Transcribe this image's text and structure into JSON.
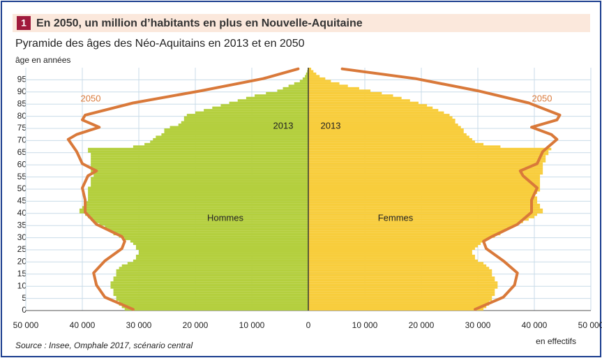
{
  "chart_data": {
    "type": "pyramid",
    "number": "1",
    "title": "En 2050, un million d’habitants en plus en Nouvelle-Aquitaine",
    "subtitle": "Pyramide des âges des Néo-Aquitains en 2013 et en 2050",
    "y_label": "âge en années",
    "x_label": "en effectifs",
    "source": "Source : Insee, Omphale 2017, scénario central",
    "bar_year": "2013",
    "ages": [
      0,
      1,
      2,
      3,
      4,
      5,
      6,
      7,
      8,
      9,
      10,
      11,
      12,
      13,
      14,
      15,
      16,
      17,
      18,
      19,
      20,
      21,
      22,
      23,
      24,
      25,
      26,
      27,
      28,
      29,
      30,
      31,
      32,
      33,
      34,
      35,
      36,
      37,
      38,
      39,
      40,
      41,
      42,
      43,
      44,
      45,
      46,
      47,
      48,
      49,
      50,
      51,
      52,
      53,
      54,
      55,
      56,
      57,
      58,
      59,
      60,
      61,
      62,
      63,
      64,
      65,
      66,
      67,
      68,
      69,
      70,
      71,
      72,
      73,
      74,
      75,
      76,
      77,
      78,
      79,
      80,
      81,
      82,
      83,
      84,
      85,
      86,
      87,
      88,
      89,
      90,
      91,
      92,
      93,
      94,
      95,
      96,
      97,
      98,
      99
    ],
    "series": [
      {
        "name": "Hommes",
        "side": "left",
        "color": "#b4cf3e",
        "values": [
          32500,
          33000,
          33500,
          33500,
          34000,
          34000,
          34500,
          34500,
          34500,
          35000,
          35000,
          35000,
          34500,
          34500,
          34000,
          34000,
          34000,
          33500,
          33000,
          32000,
          31000,
          30500,
          30500,
          30000,
          30000,
          30500,
          30500,
          31000,
          31500,
          32500,
          33500,
          34500,
          35000,
          35500,
          36000,
          37000,
          38000,
          38500,
          39000,
          39500,
          40500,
          40500,
          40000,
          39500,
          39500,
          39000,
          39000,
          39000,
          39000,
          39000,
          39000,
          38500,
          38500,
          38500,
          38500,
          38000,
          38500,
          38500,
          38500,
          38500,
          38500,
          38500,
          38500,
          38500,
          38500,
          39000,
          39000,
          31000,
          29000,
          28000,
          27500,
          27000,
          26000,
          25500,
          25500,
          24500,
          23000,
          22500,
          22000,
          22000,
          21500,
          20000,
          18500,
          17000,
          15500,
          14000,
          12500,
          11000,
          9500,
          7500,
          5500,
          4500,
          3500,
          2500,
          1500,
          1000,
          600,
          400,
          200,
          100
        ]
      },
      {
        "name": "Femmes",
        "side": "right",
        "color": "#f8cd3c",
        "values": [
          31000,
          31500,
          32000,
          32000,
          32500,
          32500,
          33000,
          33000,
          33000,
          33500,
          33500,
          33500,
          33000,
          33000,
          32500,
          32500,
          32500,
          32000,
          31500,
          31000,
          30000,
          29500,
          29500,
          29000,
          29000,
          29500,
          30000,
          30500,
          31000,
          32000,
          33000,
          34000,
          34500,
          35000,
          36000,
          37000,
          38000,
          39000,
          40000,
          40500,
          41500,
          41500,
          41000,
          41000,
          40500,
          40500,
          40500,
          40000,
          40500,
          41000,
          41000,
          41000,
          41000,
          41000,
          41000,
          41000,
          41500,
          41500,
          41500,
          41500,
          41500,
          42000,
          42000,
          42000,
          42500,
          42500,
          43000,
          34000,
          31000,
          29500,
          29000,
          28500,
          28000,
          27500,
          27500,
          27000,
          26500,
          26000,
          26000,
          25500,
          25000,
          24000,
          23000,
          22000,
          21000,
          19500,
          18000,
          16500,
          15000,
          13000,
          11000,
          9000,
          7000,
          5500,
          4000,
          3000,
          2000,
          1400,
          900,
          500
        ]
      }
    ],
    "lines": [
      {
        "name": "2050",
        "side": "left",
        "color": "#d9793a",
        "ages": [
          0,
          5,
          10,
          15,
          20,
          25,
          28,
          30,
          35,
          40,
          45,
          50,
          55,
          57,
          60,
          65,
          70,
          72,
          75,
          78,
          80,
          85,
          90,
          95,
          99
        ],
        "values": [
          31000,
          36000,
          37500,
          38000,
          36000,
          33000,
          32500,
          33000,
          37500,
          39500,
          39500,
          40000,
          39000,
          37500,
          40000,
          41000,
          42500,
          41000,
          37000,
          40000,
          39500,
          31000,
          19000,
          8000,
          1800
        ]
      },
      {
        "name": "2050",
        "side": "right",
        "color": "#d9793a",
        "ages": [
          0,
          5,
          10,
          15,
          20,
          25,
          28,
          30,
          35,
          40,
          45,
          50,
          55,
          57,
          60,
          65,
          70,
          72,
          75,
          78,
          80,
          85,
          90,
          95,
          99
        ],
        "values": [
          29500,
          34500,
          36500,
          37000,
          34500,
          31500,
          31000,
          32500,
          37000,
          39500,
          39500,
          40500,
          38000,
          37500,
          40500,
          41500,
          44000,
          43000,
          39500,
          44000,
          44500,
          39000,
          30000,
          19000,
          6000
        ]
      }
    ],
    "xlim": [
      0,
      50000
    ],
    "xticks": [
      0,
      {
        "value": 10000,
        "label": "10 000"
      },
      {
        "value": 20000,
        "label": "20 000"
      },
      {
        "value": 30000,
        "label": "30 000"
      },
      {
        "value": 40000,
        "label": "40 000"
      },
      {
        "value": 50000,
        "label": "50 000"
      }
    ],
    "ylim": [
      0,
      100
    ],
    "yticks": [
      0,
      5,
      10,
      15,
      20,
      25,
      30,
      35,
      40,
      45,
      50,
      55,
      60,
      65,
      70,
      75,
      80,
      85,
      90,
      95
    ],
    "grid": true
  }
}
